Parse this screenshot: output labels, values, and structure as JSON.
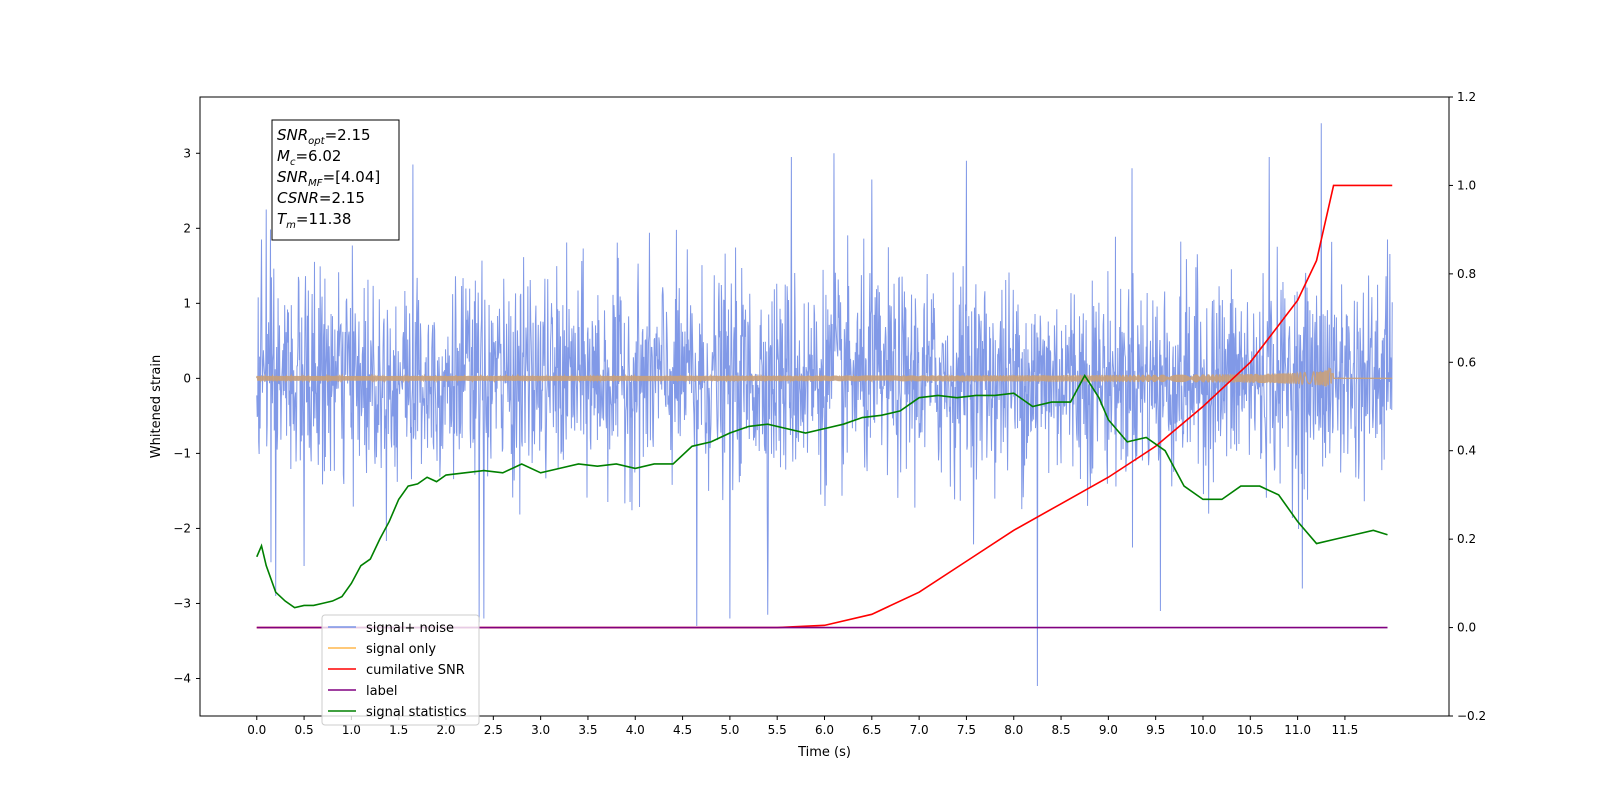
{
  "chart_data": {
    "type": "line",
    "title": "",
    "xlabel": "Time (s)",
    "ylabel": "Whitened strain",
    "xlim": [
      -0.6,
      12.6
    ],
    "ylim": [
      -4.5,
      3.75
    ],
    "y2lim": [
      -0.2,
      1.2
    ],
    "grid": false,
    "legend_placement": "lower-left",
    "x_ticks": [
      0.0,
      0.5,
      1.0,
      1.5,
      2.0,
      2.5,
      3.0,
      3.5,
      4.0,
      4.5,
      5.0,
      5.5,
      6.0,
      6.5,
      7.0,
      7.5,
      8.0,
      8.5,
      9.0,
      9.5,
      10.0,
      10.5,
      11.0,
      11.5
    ],
    "x_tick_labels": [
      "0.0",
      "0.5",
      "1.0",
      "1.5",
      "2.0",
      "2.5",
      "3.0",
      "3.5",
      "4.0",
      "4.5",
      "5.0",
      "5.5",
      "6.0",
      "6.5",
      "7.0",
      "7.5",
      "8.0",
      "8.5",
      "9.0",
      "9.5",
      "10.0",
      "10.5",
      "11.0",
      "11.5"
    ],
    "y_ticks": [
      3,
      2,
      1,
      0,
      -1,
      -2,
      -3,
      -4
    ],
    "y_tick_labels": [
      "3",
      "2",
      "1",
      "0",
      "−1",
      "−2",
      "−3",
      "−4"
    ],
    "y2_ticks": [
      1.2,
      1.0,
      0.8,
      0.6,
      0.4,
      0.2,
      0.0,
      -0.2
    ],
    "y2_tick_labels": [
      "1.2",
      "1.0",
      "0.8",
      "0.6",
      "0.4",
      "0.2",
      "0.0",
      "−0.2"
    ],
    "annotation": {
      "lines": [
        {
          "base": "SNR",
          "sub": "opt",
          "rest": "=2.15"
        },
        {
          "base": "M",
          "sub": "c",
          "rest": "=6.02"
        },
        {
          "base": "SNR",
          "sub": "MF",
          "rest": "=[4.04]"
        },
        {
          "base": "CSNR",
          "sub": "",
          "rest": "=2.15"
        },
        {
          "base": "T",
          "sub": "m",
          "rest": "=11.38"
        }
      ]
    },
    "series": [
      {
        "name": "signal+ noise",
        "color": "#7a94e6",
        "axis": "left",
        "x_range": [
          0.0,
          12.0
        ],
        "envelope_typical": [
          -1.4,
          1.4
        ],
        "peaks": [
          {
            "x": 0.05,
            "y": 1.85
          },
          {
            "x": 0.1,
            "y": 2.25
          },
          {
            "x": 0.15,
            "y": -2.45
          },
          {
            "x": 0.2,
            "y": -2.9
          },
          {
            "x": 0.5,
            "y": -2.5
          },
          {
            "x": 1.65,
            "y": 2.85
          },
          {
            "x": 2.35,
            "y": -3.25
          },
          {
            "x": 2.4,
            "y": -3.2
          },
          {
            "x": 4.65,
            "y": -3.3
          },
          {
            "x": 5.0,
            "y": -3.2
          },
          {
            "x": 5.4,
            "y": -3.15
          },
          {
            "x": 5.65,
            "y": 2.95
          },
          {
            "x": 6.1,
            "y": 3.0
          },
          {
            "x": 6.5,
            "y": 2.65
          },
          {
            "x": 7.5,
            "y": 2.9
          },
          {
            "x": 8.25,
            "y": -4.1
          },
          {
            "x": 9.25,
            "y": 2.8
          },
          {
            "x": 9.55,
            "y": -3.1
          },
          {
            "x": 10.7,
            "y": 2.95
          },
          {
            "x": 11.25,
            "y": 3.4
          },
          {
            "x": 11.05,
            "y": -2.8
          },
          {
            "x": 11.95,
            "y": 1.85
          }
        ]
      },
      {
        "name": "signal only",
        "color": "#ffb74d",
        "axis": "left",
        "x_range": [
          0.0,
          12.0
        ],
        "chirp_end": 11.38,
        "chirp_peak_amplitude": 0.22
      },
      {
        "name": "cumilative SNR",
        "color": "#ff0000",
        "axis": "right",
        "x": [
          0.0,
          5.5,
          6.0,
          6.5,
          7.0,
          7.5,
          8.0,
          8.5,
          9.0,
          9.5,
          10.0,
          10.5,
          11.0,
          11.2,
          11.38,
          12.0
        ],
        "values": [
          0.0,
          0.0,
          0.005,
          0.03,
          0.08,
          0.15,
          0.22,
          0.28,
          0.34,
          0.41,
          0.5,
          0.6,
          0.74,
          0.83,
          1.0,
          1.0
        ]
      },
      {
        "name": "label",
        "color": "#800080",
        "axis": "right",
        "x": [
          0.0,
          11.95
        ],
        "values": [
          0.0,
          0.0
        ]
      },
      {
        "name": "signal statistics",
        "color": "#008000",
        "axis": "right",
        "x": [
          0.0,
          0.05,
          0.1,
          0.2,
          0.3,
          0.4,
          0.5,
          0.6,
          0.7,
          0.8,
          0.9,
          1.0,
          1.1,
          1.2,
          1.3,
          1.4,
          1.5,
          1.6,
          1.7,
          1.8,
          1.9,
          2.0,
          2.2,
          2.4,
          2.6,
          2.8,
          3.0,
          3.2,
          3.4,
          3.6,
          3.8,
          4.0,
          4.2,
          4.4,
          4.6,
          4.8,
          5.0,
          5.2,
          5.4,
          5.6,
          5.8,
          6.0,
          6.2,
          6.4,
          6.6,
          6.8,
          7.0,
          7.2,
          7.4,
          7.6,
          7.8,
          8.0,
          8.2,
          8.4,
          8.6,
          8.75,
          8.9,
          9.0,
          9.2,
          9.4,
          9.6,
          9.8,
          10.0,
          10.2,
          10.4,
          10.6,
          10.8,
          11.0,
          11.2,
          11.4,
          11.6,
          11.8,
          11.95
        ],
        "values": [
          0.16,
          0.185,
          0.14,
          0.08,
          0.06,
          0.045,
          0.05,
          0.05,
          0.055,
          0.06,
          0.07,
          0.1,
          0.14,
          0.155,
          0.2,
          0.24,
          0.29,
          0.32,
          0.325,
          0.34,
          0.33,
          0.345,
          0.35,
          0.355,
          0.35,
          0.37,
          0.35,
          0.36,
          0.37,
          0.365,
          0.37,
          0.36,
          0.37,
          0.37,
          0.41,
          0.42,
          0.44,
          0.455,
          0.46,
          0.45,
          0.44,
          0.45,
          0.46,
          0.475,
          0.48,
          0.49,
          0.52,
          0.525,
          0.52,
          0.525,
          0.525,
          0.53,
          0.5,
          0.51,
          0.51,
          0.57,
          0.52,
          0.47,
          0.42,
          0.43,
          0.4,
          0.32,
          0.29,
          0.29,
          0.32,
          0.32,
          0.3,
          0.24,
          0.19,
          0.2,
          0.21,
          0.22,
          0.21
        ]
      }
    ]
  }
}
